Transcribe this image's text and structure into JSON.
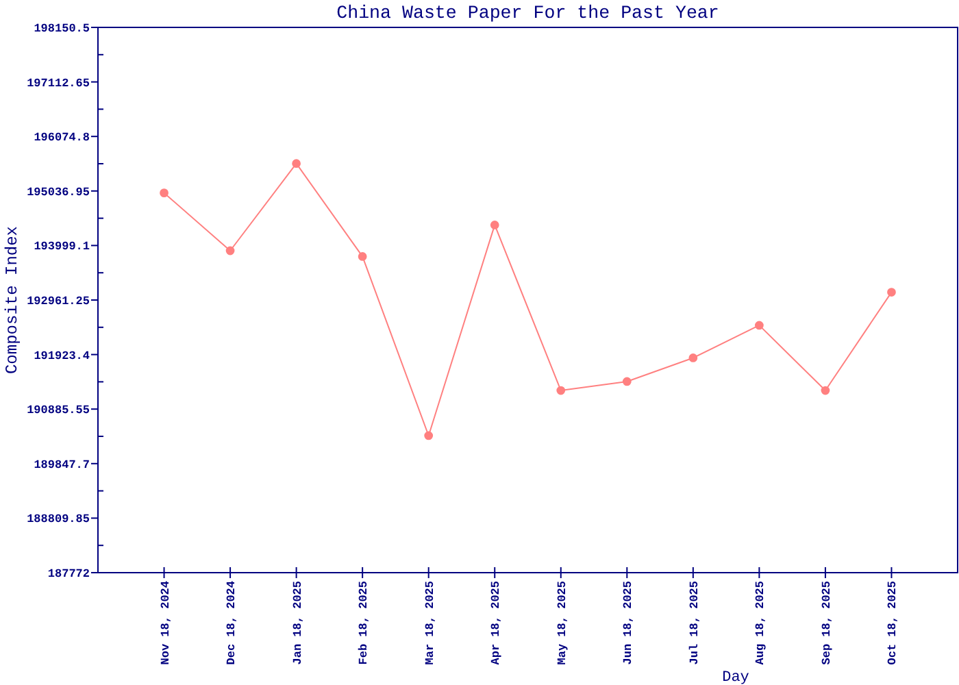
{
  "chart_data": {
    "type": "line",
    "title": "China Waste Paper For the Past Year",
    "xlabel": "Day",
    "ylabel": "Composite Index",
    "categories": [
      "Nov 18, 2024",
      "Dec 18, 2024",
      "Jan 18, 2025",
      "Feb 18, 2025",
      "Mar 18, 2025",
      "Apr 18, 2025",
      "May 18, 2025",
      "Jun 18, 2025",
      "Jul 18, 2025",
      "Aug 18, 2025",
      "Sep 18, 2025",
      "Oct 18, 2025"
    ],
    "values": [
      195000,
      193900,
      195560,
      193790,
      190380,
      194390,
      191240,
      191410,
      191860,
      192480,
      191240,
      193110
    ],
    "color": "#ff8080",
    "marker": "circle",
    "line_style": "solid",
    "ylim": [
      187772,
      198150.5
    ],
    "yticks": [
      187772,
      {
        "value": 188290.925,
        "label": null
      },
      188809.85,
      {
        "value": 189328.775,
        "label": null
      },
      189847.7,
      {
        "value": 190366.625,
        "label": null
      },
      190885.55,
      {
        "value": 191404.475,
        "label": null
      },
      191923.4,
      {
        "value": 192442.325,
        "label": null
      },
      192961.25,
      {
        "value": 193480.175,
        "label": null
      },
      193999.1,
      {
        "value": 194518.025,
        "label": null
      },
      195036.95,
      {
        "value": 195555.875,
        "label": null
      },
      196074.8,
      {
        "value": 196593.725,
        "label": null
      },
      197112.65,
      {
        "value": 197631.575,
        "label": null
      },
      198150.5
    ]
  }
}
